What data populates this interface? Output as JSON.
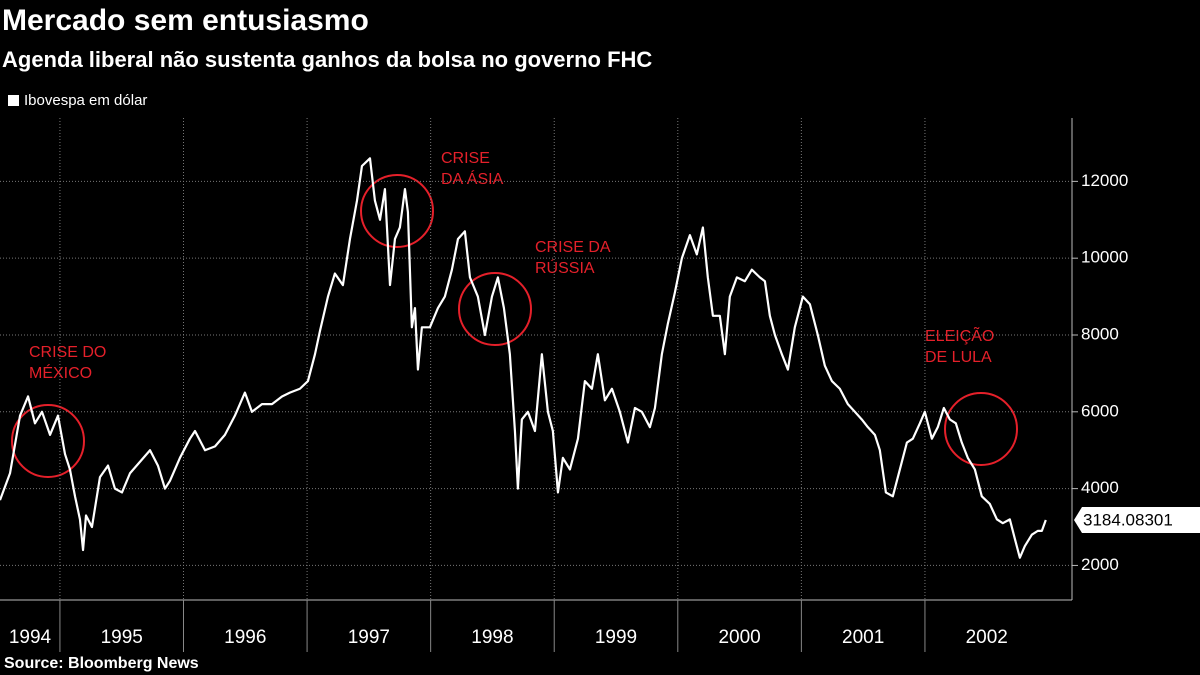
{
  "chart_data": {
    "type": "line",
    "title": "Mercado sem entusiasmo",
    "subtitle": "Agenda liberal não sustenta ganhos da bolsa no governo FHC",
    "source": "Source:  Bloomberg News",
    "annotations": [
      [
        "CRISE DO",
        "MÉXICO"
      ],
      [
        "CRISE",
        "DA ÁSIA"
      ],
      [
        "CRISE DA",
        "RÚSSIA"
      ],
      [
        "ELEIÇÃO",
        "DE LULA"
      ]
    ],
    "xlim": [
      1994.515,
      2003.19
    ],
    "xticks": [
      1994,
      1995,
      1996,
      1997,
      1998,
      1999,
      2000,
      2001,
      2002
    ],
    "ylim": [
      1100,
      13650
    ],
    "yticks": [
      2000,
      4000,
      6000,
      8000,
      10000,
      12000
    ],
    "grid": true,
    "series": [
      {
        "name": "Ibovespa em dólar",
        "color": "#ffffff",
        "x": [
          1994.515,
          1994.596,
          1994.677,
          1994.742,
          1994.798,
          1994.855,
          1994.92,
          1994.984,
          1995.041,
          1995.081,
          1995.122,
          1995.162,
          1995.187,
          1995.211,
          1995.259,
          1995.324,
          1995.389,
          1995.445,
          1995.502,
          1995.567,
          1995.648,
          1995.729,
          1995.793,
          1995.85,
          1995.89,
          1995.971,
          1996.052,
          1996.093,
          1996.174,
          1996.255,
          1996.335,
          1996.416,
          1996.497,
          1996.554,
          1996.635,
          1996.716,
          1996.797,
          1996.861,
          1996.942,
          1997.007,
          1997.064,
          1997.104,
          1997.169,
          1997.225,
          1997.29,
          1997.347,
          1997.404,
          1997.444,
          1997.509,
          1997.549,
          1997.59,
          1997.63,
          1997.671,
          1997.711,
          1997.751,
          1997.792,
          1997.816,
          1997.848,
          1997.873,
          1997.897,
          1997.929,
          1997.994,
          1998.059,
          1998.115,
          1998.172,
          1998.221,
          1998.277,
          1998.318,
          1998.382,
          1998.439,
          1998.496,
          1998.544,
          1998.593,
          1998.641,
          1998.682,
          1998.706,
          1998.738,
          1998.787,
          1998.844,
          1998.9,
          1998.949,
          1998.989,
          1999.03,
          1999.07,
          1999.127,
          1999.192,
          1999.248,
          1999.305,
          1999.353,
          1999.41,
          1999.467,
          1999.531,
          1999.596,
          1999.653,
          1999.709,
          1999.774,
          1999.815,
          1999.871,
          1999.92,
          1999.976,
          2000.033,
          2000.098,
          2000.154,
          2000.203,
          2000.243,
          2000.284,
          2000.34,
          2000.381,
          2000.421,
          2000.478,
          2000.543,
          2000.599,
          2000.664,
          2000.705,
          2000.745,
          2000.786,
          2000.842,
          2000.891,
          2000.947,
          2001.012,
          2001.069,
          2001.133,
          2001.19,
          2001.247,
          2001.311,
          2001.376,
          2001.433,
          2001.489,
          2001.538,
          2001.595,
          2001.635,
          2001.684,
          2001.74,
          2001.797,
          2001.854,
          2001.902,
          2001.959,
          2001.999,
          2002.056,
          2002.104,
          2002.153,
          2002.202,
          2002.25,
          2002.298,
          2002.347,
          2002.404,
          2002.46,
          2002.525,
          2002.582,
          2002.63,
          2002.687,
          2002.727,
          2002.768,
          2002.808,
          2002.865,
          2002.913,
          2002.946,
          2002.978
        ],
        "values": [
          3700,
          4400,
          5900,
          6400,
          5700,
          6000,
          5400,
          5900,
          4900,
          4500,
          3800,
          3200,
          2400,
          3300,
          3000,
          4300,
          4600,
          4000,
          3900,
          4400,
          4700,
          5000,
          4600,
          4000,
          4200,
          4800,
          5300,
          5500,
          5000,
          5100,
          5400,
          5900,
          6500,
          6000,
          6200,
          6200,
          6400,
          6500,
          6600,
          6800,
          7500,
          8100,
          9000,
          9600,
          9300,
          10500,
          11500,
          12400,
          12600,
          11500,
          11000,
          11800,
          9300,
          10500,
          10800,
          11800,
          11200,
          8200,
          8700,
          7100,
          8200,
          8200,
          8700,
          9000,
          9700,
          10500,
          10700,
          9500,
          9000,
          8000,
          9000,
          9500,
          8700,
          7500,
          5500,
          4000,
          5800,
          6000,
          5500,
          7500,
          6000,
          5500,
          3900,
          4800,
          4500,
          5300,
          6800,
          6600,
          7500,
          6300,
          6600,
          6000,
          5200,
          6100,
          6000,
          5600,
          6100,
          7500,
          8300,
          9100,
          10000,
          10600,
          10100,
          10800,
          9500,
          8500,
          8500,
          7500,
          9000,
          9500,
          9400,
          9700,
          9500,
          9400,
          8500,
          8000,
          7500,
          7100,
          8200,
          9000,
          8800,
          8000,
          7200,
          6800,
          6600,
          6200,
          6000,
          5800,
          5600,
          5400,
          5000,
          3900,
          3800,
          4500,
          5200,
          5300,
          5700,
          6000,
          5300,
          5600,
          6100,
          5800,
          5700,
          5200,
          4800,
          4500,
          3800,
          3600,
          3200,
          3100,
          3200,
          2700,
          2200,
          2500,
          2800,
          2900,
          2900,
          3184.08301
        ]
      }
    ]
  }
}
